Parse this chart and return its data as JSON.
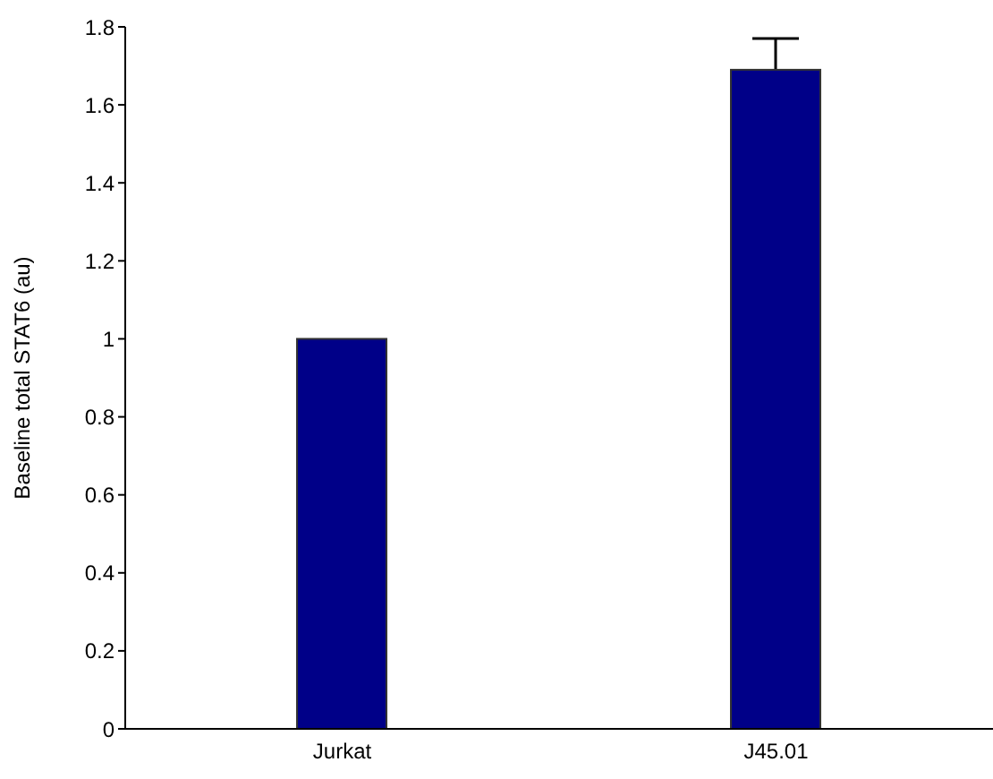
{
  "chart_data": {
    "type": "bar",
    "ylabel": "Baseline total STAT6 (au)",
    "categories": [
      "Jurkat",
      "J45.01"
    ],
    "values": [
      1,
      1.69
    ],
    "errors": [
      null,
      [
        1.69,
        1.77
      ]
    ],
    "color": "#000088",
    "ylim": [
      0,
      1.8
    ],
    "yticks": [
      0,
      0.2,
      0.4,
      0.6,
      0.8,
      1,
      1.2,
      1.4,
      1.6,
      1.8
    ],
    "grid": false,
    "legend": false
  }
}
